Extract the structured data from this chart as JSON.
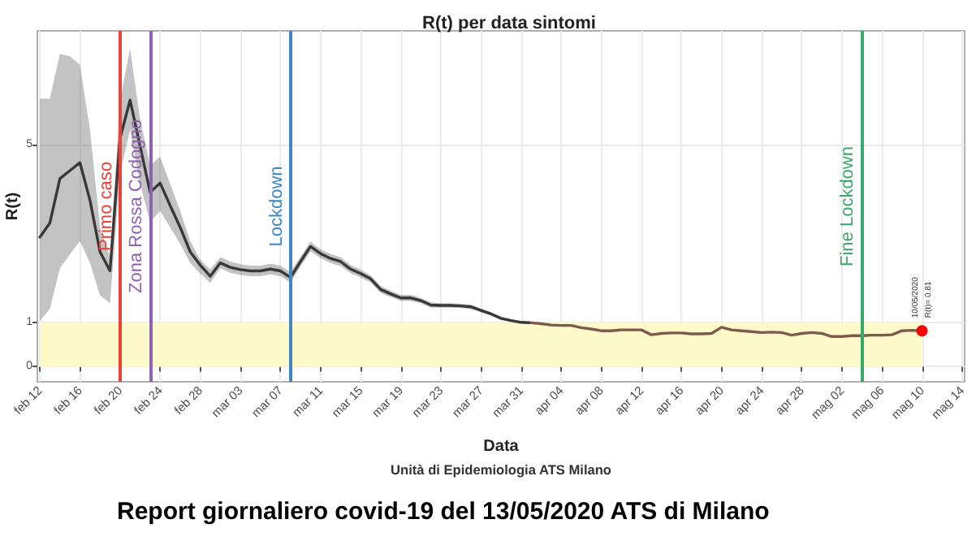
{
  "chart_data": {
    "type": "line",
    "title": "R(t) per data sintomi",
    "xlabel": "Data",
    "ylabel": "R(t)",
    "annotations": [
      "Unità di Epidemiologia ATS Milano",
      "Report giornaliero covid-19 del 13/05/2020 ATS di Milano",
      {
        "text": "10/05/2020\nR(t)= 0.81",
        "x": "2020-05-10",
        "y": 0.81
      }
    ],
    "xlim": [
      "2020-02-11T18:00",
      "2020-05-14T06:00"
    ],
    "xticks": [
      {
        "value": "2020-02-12",
        "label": "feb 12"
      },
      {
        "value": "2020-02-16",
        "label": "feb 16"
      },
      {
        "value": "2020-02-20",
        "label": "feb 20"
      },
      {
        "value": "2020-02-24",
        "label": "feb 24"
      },
      {
        "value": "2020-02-28",
        "label": "feb 28"
      },
      {
        "value": "2020-03-03",
        "label": "mar 03"
      },
      {
        "value": "2020-03-07",
        "label": "mar 07"
      },
      {
        "value": "2020-03-11",
        "label": "mar 11"
      },
      {
        "value": "2020-03-15",
        "label": "mar 15"
      },
      {
        "value": "2020-03-19",
        "label": "mar 19"
      },
      {
        "value": "2020-03-23",
        "label": "mar 23"
      },
      {
        "value": "2020-03-27",
        "label": "mar 27"
      },
      {
        "value": "2020-03-31",
        "label": "mar 31"
      },
      {
        "value": "2020-04-04",
        "label": "apr 04"
      },
      {
        "value": "2020-04-08",
        "label": "apr 08"
      },
      {
        "value": "2020-04-12",
        "label": "apr 12"
      },
      {
        "value": "2020-04-16",
        "label": "apr 16"
      },
      {
        "value": "2020-04-20",
        "label": "apr 20"
      },
      {
        "value": "2020-04-24",
        "label": "apr 24"
      },
      {
        "value": "2020-04-28",
        "label": "apr 28"
      },
      {
        "value": "2020-05-02",
        "label": "mag 02"
      },
      {
        "value": "2020-05-06",
        "label": "mag 06"
      },
      {
        "value": "2020-05-10",
        "label": "mag 10"
      },
      {
        "value": "2020-05-14",
        "label": "mag 14"
      }
    ],
    "ylim": [
      -0.34,
      7.57
    ],
    "yticks": [
      0,
      1,
      5
    ],
    "grid": true,
    "marker": "none",
    "ref_lines": [
      {
        "axis": "x",
        "value": "2020-02-20",
        "label": "Primo caso",
        "color": "#e8433a"
      },
      {
        "axis": "x",
        "value": "2020-02-23",
        "label": "Zona Rossa Codogno",
        "color": "#8e62b5"
      },
      {
        "axis": "x",
        "value": "2020-03-08",
        "label": "Lockdown",
        "color": "#3f87c3"
      },
      {
        "axis": "x",
        "value": "2020-05-04",
        "label": "Fine Lockdown",
        "color": "#3aa86b"
      }
    ],
    "bands": [
      {
        "axis": "y",
        "from": 0,
        "to": 1,
        "color": "#fdf9c9"
      }
    ],
    "series": [
      {
        "color": "#383838",
        "x": [
          "2020-02-12",
          "2020-02-13",
          "2020-02-14",
          "2020-02-15",
          "2020-02-16",
          "2020-02-17",
          "2020-02-18",
          "2020-02-19",
          "2020-02-20",
          "2020-02-21",
          "2020-02-22",
          "2020-02-23",
          "2020-02-24",
          "2020-02-25",
          "2020-02-26",
          "2020-02-27",
          "2020-02-28",
          "2020-02-29",
          "2020-03-01",
          "2020-03-02",
          "2020-03-03",
          "2020-03-04",
          "2020-03-05",
          "2020-03-06",
          "2020-03-07",
          "2020-03-08",
          "2020-03-09",
          "2020-03-10",
          "2020-03-11",
          "2020-03-12",
          "2020-03-13",
          "2020-03-14",
          "2020-03-15",
          "2020-03-16",
          "2020-03-17",
          "2020-03-18",
          "2020-03-19",
          "2020-03-20",
          "2020-03-21",
          "2020-03-22",
          "2020-03-23",
          "2020-03-24",
          "2020-03-25",
          "2020-03-26",
          "2020-03-27",
          "2020-03-28",
          "2020-03-29",
          "2020-03-30",
          "2020-03-31",
          "2020-04-01"
        ],
        "values": [
          2.92,
          3.24,
          4.24,
          4.42,
          4.6,
          3.75,
          2.59,
          2.16,
          5.15,
          6.01,
          4.97,
          3.93,
          4.14,
          3.63,
          3.14,
          2.59,
          2.29,
          2.04,
          2.34,
          2.24,
          2.19,
          2.16,
          2.16,
          2.2,
          2.16,
          2.01,
          2.37,
          2.71,
          2.55,
          2.44,
          2.37,
          2.2,
          2.1,
          1.98,
          1.74,
          1.64,
          1.55,
          1.55,
          1.49,
          1.39,
          1.38,
          1.38,
          1.37,
          1.35,
          1.27,
          1.19,
          1.09,
          1.04,
          1.0,
          0.99
        ],
        "lower": [
          1.03,
          1.31,
          2.22,
          2.53,
          2.83,
          2.34,
          1.61,
          1.43,
          4.36,
          5.34,
          4.12,
          3.26,
          3.51,
          3.14,
          2.77,
          2.34,
          2.1,
          1.89,
          2.22,
          2.12,
          2.07,
          2.04,
          2.04,
          2.08,
          2.04,
          1.89,
          2.26,
          2.6,
          2.45,
          2.34,
          2.27,
          2.11,
          2.01,
          1.9,
          1.66,
          1.57,
          1.48,
          1.48,
          1.43,
          1.33,
          1.33,
          1.33,
          1.32,
          1.3,
          1.23,
          1.15,
          1.05,
          1.01,
          0.97,
          0.96
        ],
        "upper": [
          6.04,
          6.04,
          7.05,
          7.0,
          6.8,
          5.34,
          3.14,
          2.47,
          6.0,
          7.17,
          5.58,
          4.54,
          4.73,
          4.12,
          3.51,
          2.83,
          2.41,
          2.19,
          2.47,
          2.37,
          2.31,
          2.28,
          2.28,
          2.32,
          2.28,
          2.13,
          2.48,
          2.82,
          2.65,
          2.54,
          2.47,
          2.29,
          2.19,
          2.06,
          1.82,
          1.71,
          1.62,
          1.62,
          1.55,
          1.45,
          1.43,
          1.43,
          1.42,
          1.4,
          1.31,
          1.23,
          1.13,
          1.07,
          1.03,
          1.02
        ]
      },
      {
        "color": "#7e5a4c",
        "x": [
          "2020-04-01",
          "2020-04-02",
          "2020-04-03",
          "2020-04-04",
          "2020-04-05",
          "2020-04-06",
          "2020-04-07",
          "2020-04-08",
          "2020-04-09",
          "2020-04-10",
          "2020-04-11",
          "2020-04-12",
          "2020-04-13",
          "2020-04-14",
          "2020-04-15",
          "2020-04-16",
          "2020-04-17",
          "2020-04-18",
          "2020-04-19",
          "2020-04-20",
          "2020-04-21",
          "2020-04-22",
          "2020-04-23",
          "2020-04-24",
          "2020-04-25",
          "2020-04-26",
          "2020-04-27",
          "2020-04-28",
          "2020-04-29",
          "2020-04-30",
          "2020-05-01",
          "2020-05-02",
          "2020-05-03",
          "2020-05-04",
          "2020-05-05",
          "2020-05-06",
          "2020-05-07",
          "2020-05-08",
          "2020-05-09",
          "2020-05-10"
        ],
        "values": [
          0.99,
          0.97,
          0.94,
          0.93,
          0.93,
          0.88,
          0.85,
          0.81,
          0.81,
          0.83,
          0.83,
          0.83,
          0.72,
          0.75,
          0.76,
          0.76,
          0.74,
          0.74,
          0.75,
          0.89,
          0.83,
          0.81,
          0.79,
          0.77,
          0.78,
          0.77,
          0.71,
          0.75,
          0.77,
          0.75,
          0.68,
          0.68,
          0.7,
          0.7,
          0.71,
          0.71,
          0.72,
          0.81,
          0.82,
          0.81
        ]
      },
      {
        "type": "scatter",
        "color": "#ff0000",
        "marker": "circle",
        "x": [
          "2020-05-10"
        ],
        "values": [
          0.81
        ]
      }
    ]
  }
}
